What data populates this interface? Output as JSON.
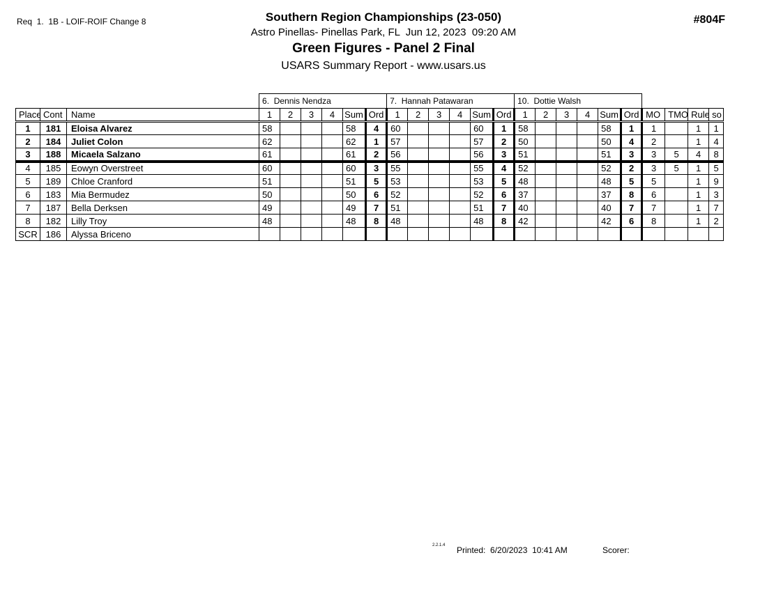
{
  "header": {
    "req_label": "Req  1.  1B - LOIF-ROIF Change 8",
    "report_number": "#804F",
    "title": "Southern Region Championships (23-050)",
    "venue_line": "Astro Pinellas- Pinellas Park, FL  Jun 12, 2023  09:20 AM",
    "event_title": "Green Figures - Panel 2 Final",
    "report_name": "USARS Summary Report - www.usars.us"
  },
  "table": {
    "judges": [
      "6.  Dennis Nendza",
      "7.  Hannah Patawaran",
      "10.  Dottie Walsh"
    ],
    "columns": {
      "place": "Place",
      "cont": "Cont",
      "name": "Name",
      "scores": [
        "1",
        "2",
        "3",
        "4",
        "Sum",
        "Ord"
      ],
      "right": [
        "MO",
        "TMO",
        "Rule",
        "so"
      ]
    },
    "rows": [
      {
        "place": "1",
        "cont": "181",
        "name": "Eloisa Alvarez",
        "bold": true,
        "thick_after": false,
        "judges": [
          [
            "58",
            "",
            "",
            "",
            "58",
            "4"
          ],
          [
            "60",
            "",
            "",
            "",
            "60",
            "1"
          ],
          [
            "58",
            "",
            "",
            "",
            "58",
            "1"
          ]
        ],
        "mo": "1",
        "tmo": "",
        "rule": "1",
        "so": "1"
      },
      {
        "place": "2",
        "cont": "184",
        "name": "Juliet Colon",
        "bold": true,
        "thick_after": false,
        "judges": [
          [
            "62",
            "",
            "",
            "",
            "62",
            "1"
          ],
          [
            "57",
            "",
            "",
            "",
            "57",
            "2"
          ],
          [
            "50",
            "",
            "",
            "",
            "50",
            "4"
          ]
        ],
        "mo": "2",
        "tmo": "",
        "rule": "1",
        "so": "4"
      },
      {
        "place": "3",
        "cont": "188",
        "name": "Micaela Salzano",
        "bold": true,
        "thick_after": true,
        "judges": [
          [
            "61",
            "",
            "",
            "",
            "61",
            "2"
          ],
          [
            "56",
            "",
            "",
            "",
            "56",
            "3"
          ],
          [
            "51",
            "",
            "",
            "",
            "51",
            "3"
          ]
        ],
        "mo": "3",
        "tmo": "5",
        "rule": "4",
        "so": "8"
      },
      {
        "place": "4",
        "cont": "185",
        "name": "Eowyn Overstreet",
        "bold": false,
        "thick_after": false,
        "judges": [
          [
            "60",
            "",
            "",
            "",
            "60",
            "3"
          ],
          [
            "55",
            "",
            "",
            "",
            "55",
            "4"
          ],
          [
            "52",
            "",
            "",
            "",
            "52",
            "2"
          ]
        ],
        "mo": "3",
        "tmo": "5",
        "rule": "1",
        "so": "5"
      },
      {
        "place": "5",
        "cont": "189",
        "name": "Chloe Cranford",
        "bold": false,
        "thick_after": false,
        "judges": [
          [
            "51",
            "",
            "",
            "",
            "51",
            "5"
          ],
          [
            "53",
            "",
            "",
            "",
            "53",
            "5"
          ],
          [
            "48",
            "",
            "",
            "",
            "48",
            "5"
          ]
        ],
        "mo": "5",
        "tmo": "",
        "rule": "1",
        "so": "9"
      },
      {
        "place": "6",
        "cont": "183",
        "name": "Mia Bermudez",
        "bold": false,
        "thick_after": false,
        "judges": [
          [
            "50",
            "",
            "",
            "",
            "50",
            "6"
          ],
          [
            "52",
            "",
            "",
            "",
            "52",
            "6"
          ],
          [
            "37",
            "",
            "",
            "",
            "37",
            "8"
          ]
        ],
        "mo": "6",
        "tmo": "",
        "rule": "1",
        "so": "3"
      },
      {
        "place": "7",
        "cont": "187",
        "name": "Bella Derksen",
        "bold": false,
        "thick_after": false,
        "judges": [
          [
            "49",
            "",
            "",
            "",
            "49",
            "7"
          ],
          [
            "51",
            "",
            "",
            "",
            "51",
            "7"
          ],
          [
            "40",
            "",
            "",
            "",
            "40",
            "7"
          ]
        ],
        "mo": "7",
        "tmo": "",
        "rule": "1",
        "so": "7"
      },
      {
        "place": "8",
        "cont": "182",
        "name": "Lilly Troy",
        "bold": false,
        "thick_after": false,
        "judges": [
          [
            "48",
            "",
            "",
            "",
            "48",
            "8"
          ],
          [
            "48",
            "",
            "",
            "",
            "48",
            "8"
          ],
          [
            "42",
            "",
            "",
            "",
            "42",
            "6"
          ]
        ],
        "mo": "8",
        "tmo": "",
        "rule": "1",
        "so": "2"
      },
      {
        "place": "SCR",
        "cont": "186",
        "name": "Alyssa Briceno",
        "bold": false,
        "thick_after": false,
        "judges": [
          [
            "",
            "",
            "",
            "",
            "",
            ""
          ],
          [
            "",
            "",
            "",
            "",
            "",
            ""
          ],
          [
            "",
            "",
            "",
            "",
            "",
            ""
          ]
        ],
        "mo": "",
        "tmo": "",
        "rule": "",
        "so": ""
      }
    ]
  },
  "footer": {
    "version": "2.2.1.4",
    "printed_label": "Printed:  6/20/2023  10:41 AM",
    "scorer_label": "Scorer:"
  }
}
